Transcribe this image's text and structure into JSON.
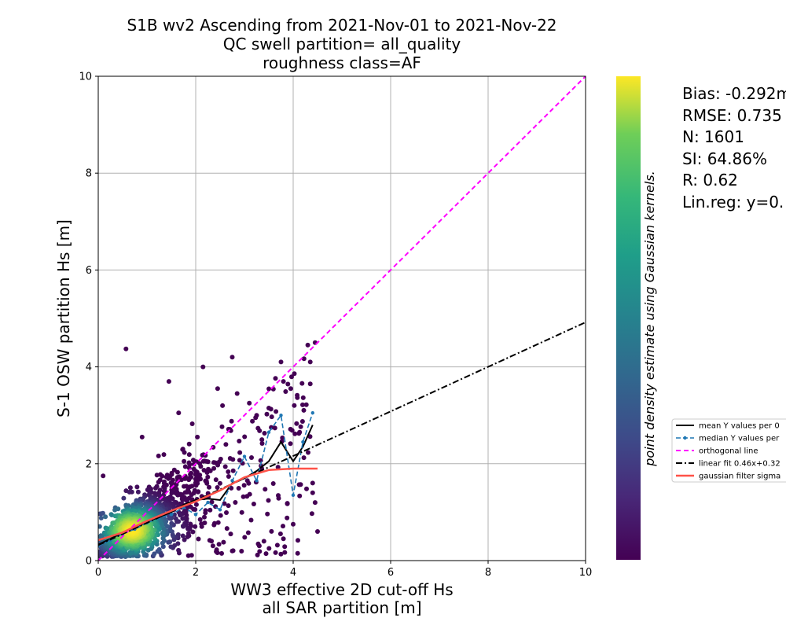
{
  "chart_data": {
    "type": "scatter",
    "title_lines": [
      "S1B wv2 Ascending from 2021-Nov-01 to 2021-Nov-22",
      "QC swell partition= all_quality",
      "roughness class=AF"
    ],
    "xlabel_lines": [
      "WW3 effective 2D cut-off Hs",
      "all SAR partition [m]"
    ],
    "ylabel": "S-1 OSW partition Hs [m]",
    "xlim": [
      0,
      10
    ],
    "ylim": [
      0,
      10
    ],
    "xticks": [
      0,
      2,
      4,
      6,
      8,
      10
    ],
    "yticks": [
      0,
      2,
      4,
      6,
      8,
      10
    ],
    "grid": true,
    "colorbar_label": "point density estimate using Gaussian kernels.",
    "colormap": [
      "#440154",
      "#3b528b",
      "#21918c",
      "#5ec962",
      "#fde725"
    ],
    "stats": [
      "Bias: -0.292m",
      "RMSE: 0.735",
      "N: 1601",
      "SI: 64.86%",
      "R: 0.62",
      "Lin.reg: y=0."
    ],
    "outliers": [
      [
        0.57,
        4.37
      ],
      [
        0.9,
        2.55
      ],
      [
        1.45,
        3.7
      ],
      [
        1.65,
        3.05
      ],
      [
        2.15,
        4.0
      ],
      [
        2.75,
        4.2
      ],
      [
        2.45,
        3.55
      ],
      [
        2.55,
        3.2
      ],
      [
        2.85,
        3.45
      ],
      [
        3.1,
        3.25
      ],
      [
        3.25,
        3.0
      ],
      [
        3.5,
        3.15
      ],
      [
        3.55,
        2.75
      ],
      [
        3.75,
        4.1
      ],
      [
        3.8,
        3.7
      ],
      [
        3.95,
        3.55
      ],
      [
        4.3,
        4.45
      ],
      [
        4.35,
        4.1
      ],
      [
        4.35,
        3.65
      ],
      [
        4.45,
        4.5
      ],
      [
        4.4,
        1.6
      ],
      [
        4.4,
        1.4
      ],
      [
        4.45,
        1.2
      ],
      [
        4.5,
        0.6
      ],
      [
        4.0,
        0.75
      ],
      [
        3.8,
        0.45
      ],
      [
        3.4,
        0.4
      ],
      [
        2.75,
        0.2
      ],
      [
        1.85,
        0.1
      ],
      [
        0.1,
        1.75
      ]
    ],
    "series": [
      {
        "name": "mean Y values per 0",
        "color": "#000000",
        "x": [
          0.0,
          0.25,
          0.5,
          0.75,
          1.0,
          1.25,
          1.5,
          1.75,
          2.0,
          2.25,
          2.5,
          2.75,
          3.0,
          3.25,
          3.5,
          3.75,
          4.0,
          4.2,
          4.4
        ],
        "y": [
          0.33,
          0.45,
          0.58,
          0.68,
          0.8,
          0.9,
          1.0,
          1.15,
          1.25,
          1.28,
          1.25,
          1.6,
          1.7,
          1.85,
          2.05,
          2.45,
          2.05,
          2.35,
          2.8
        ]
      },
      {
        "name": "median Y values per",
        "color": "#1f77b4",
        "x": [
          0.0,
          0.25,
          0.5,
          0.75,
          1.0,
          1.25,
          1.5,
          1.75,
          2.0,
          2.25,
          2.5,
          2.75,
          3.0,
          3.25,
          3.5,
          3.75,
          4.0,
          4.2,
          4.4
        ],
        "y": [
          0.3,
          0.42,
          0.55,
          0.65,
          0.78,
          0.88,
          0.95,
          1.1,
          0.95,
          1.2,
          1.05,
          1.65,
          2.15,
          1.65,
          2.65,
          3.0,
          1.35,
          2.45,
          3.05
        ]
      },
      {
        "name": "orthogonal line",
        "color": "#ff00ff",
        "x": [
          0,
          10
        ],
        "y": [
          0,
          10
        ]
      },
      {
        "name": "linear fit 0.46x+0.32",
        "color": "#000000",
        "x": [
          0,
          10
        ],
        "y": [
          0.32,
          4.92
        ]
      },
      {
        "name": "gaussian filter sigma",
        "color": "#ff5248",
        "x": [
          0.0,
          0.5,
          1.0,
          1.5,
          2.0,
          2.5,
          3.0,
          3.5,
          4.0,
          4.5
        ],
        "y": [
          0.42,
          0.58,
          0.82,
          1.03,
          1.22,
          1.45,
          1.72,
          1.87,
          1.9,
          1.9
        ]
      }
    ],
    "legend_position": "right"
  }
}
